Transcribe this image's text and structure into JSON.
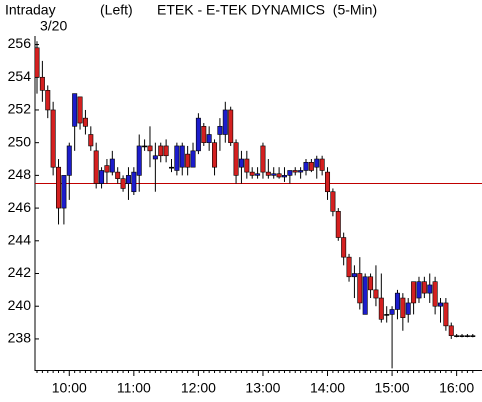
{
  "chart_data": {
    "type": "candlestick",
    "label": "Intraday",
    "date": "3/20",
    "panel": "(Left)",
    "title": "ETEK - E-TEK DYNAMICS  (5-Min)",
    "categories": [
      null,
      null,
      null,
      null,
      null,
      null,
      "10:00",
      null,
      null,
      null,
      null,
      null,
      null,
      null,
      null,
      null,
      null,
      null,
      "11:00",
      null,
      null,
      null,
      null,
      null,
      null,
      null,
      null,
      null,
      null,
      null,
      "12:00",
      null,
      null,
      null,
      null,
      null,
      null,
      null,
      null,
      null,
      null,
      null,
      "13:00",
      null,
      null,
      null,
      null,
      null,
      null,
      null,
      null,
      null,
      null,
      null,
      "14:00",
      null,
      null,
      null,
      null,
      null,
      null,
      null,
      null,
      null,
      null,
      null,
      "15:00",
      null,
      null,
      null,
      null,
      null,
      null,
      null,
      null,
      null,
      null,
      null,
      "16:00",
      null,
      null,
      null
    ],
    "open": [
      255.8,
      254,
      253.2,
      252,
      248.5,
      246,
      248,
      251,
      252.8,
      251.5,
      250.5,
      249.5,
      247.5,
      248.6,
      248.2,
      248.2,
      247.8,
      247.5,
      247,
      248,
      249.8,
      249.8,
      249,
      249.8,
      249.8,
      248.5,
      248.3,
      248.5,
      249.3,
      248.5,
      249.5,
      251,
      250,
      250,
      250.5,
      250.5,
      252,
      250,
      248.5,
      249,
      248.2,
      248,
      249.8,
      248.2,
      248,
      248.1,
      247.9,
      248,
      248.3,
      248.2,
      248.3,
      248.8,
      248.5,
      249,
      248.2,
      247,
      245.8,
      244.2,
      243,
      241.8,
      242,
      239.5,
      241.8,
      241,
      240.5,
      239.5,
      239.5,
      239.8,
      240.5,
      239.5,
      241.5,
      240.5,
      241.5,
      240.8,
      241.5,
      240,
      240.2,
      238.8,
      238.2,
      238.2,
      238.2,
      238.2
    ],
    "high": [
      256.2,
      255,
      253.5,
      252.5,
      249,
      248,
      250,
      253,
      252.8,
      252,
      251,
      250,
      248.5,
      249,
      249.5,
      248.5,
      248,
      248.5,
      248.5,
      250.5,
      250.2,
      251,
      250,
      250,
      250.2,
      249,
      250,
      250,
      249.8,
      250,
      251.8,
      251.2,
      251,
      250.2,
      251.5,
      252.5,
      252.2,
      250.2,
      249.5,
      249.5,
      248.5,
      248.5,
      250,
      249,
      248.5,
      248.5,
      248.5,
      248.3,
      248.5,
      248.5,
      249,
      249,
      249.2,
      249.2,
      248.5,
      247.2,
      246,
      244.5,
      243.2,
      242.5,
      243,
      242,
      242,
      242.5,
      242,
      240,
      240,
      241,
      240.8,
      240.5,
      241.5,
      241.8,
      241.8,
      242,
      241.8,
      240.5,
      240.5,
      239,
      238.3,
      238.3,
      238.3,
      238.3
    ],
    "low": [
      253,
      252.5,
      251.5,
      248,
      245,
      245,
      246.5,
      249.5,
      250.8,
      250.5,
      249.5,
      247.2,
      247.2,
      247.5,
      248,
      247.5,
      247,
      246.5,
      246.8,
      247,
      249.5,
      248.5,
      247,
      248.8,
      248.8,
      248.2,
      248,
      248,
      248,
      248.5,
      249.3,
      249.8,
      249.5,
      248,
      249.5,
      250,
      249.8,
      247.5,
      247.5,
      247.8,
      247.8,
      247.8,
      247.8,
      247.8,
      247.8,
      247.8,
      247.6,
      247.5,
      248,
      247.8,
      248,
      248.2,
      247.8,
      248,
      246.5,
      245.5,
      244,
      242.5,
      241.5,
      240.5,
      239.8,
      239.5,
      240.5,
      240,
      239,
      239,
      236.2,
      239.2,
      238.5,
      239,
      239.5,
      240.2,
      240.5,
      240.2,
      239.5,
      239,
      238.5,
      238,
      238.1,
      238.1,
      238.1,
      238.1
    ],
    "close": [
      254,
      253.2,
      252,
      248.5,
      246,
      248,
      249.8,
      253,
      251.2,
      251,
      249.8,
      247.5,
      248.3,
      248.2,
      249,
      247.8,
      247.2,
      248,
      248.2,
      249.8,
      249.8,
      249.5,
      249.2,
      249.2,
      249.2,
      248.5,
      249.8,
      249.8,
      248.5,
      249.5,
      251.5,
      250,
      250.5,
      248.5,
      251,
      252,
      250,
      248,
      249,
      248.2,
      248,
      248.1,
      248.2,
      248,
      248.1,
      247.9,
      248,
      248.3,
      248.2,
      248.3,
      248.8,
      248.3,
      249,
      248.3,
      247,
      245.8,
      244.2,
      243,
      241.8,
      242,
      240.2,
      241.8,
      241,
      240.5,
      239.2,
      239.5,
      239.8,
      240.8,
      239.3,
      240.2,
      240.2,
      241.5,
      240.8,
      241.3,
      240,
      240.2,
      238.8,
      238.2,
      238.2,
      238.2,
      238.2,
      238.2
    ],
    "up_color": "#1c1ccc",
    "down_color": "#d42020",
    "reference_line": 247.5,
    "reference_color": "#c00000",
    "ylim": [
      236.1,
      256.4
    ],
    "yticks": [
      238,
      240,
      242,
      244,
      246,
      248,
      250,
      252,
      254,
      256
    ]
  }
}
